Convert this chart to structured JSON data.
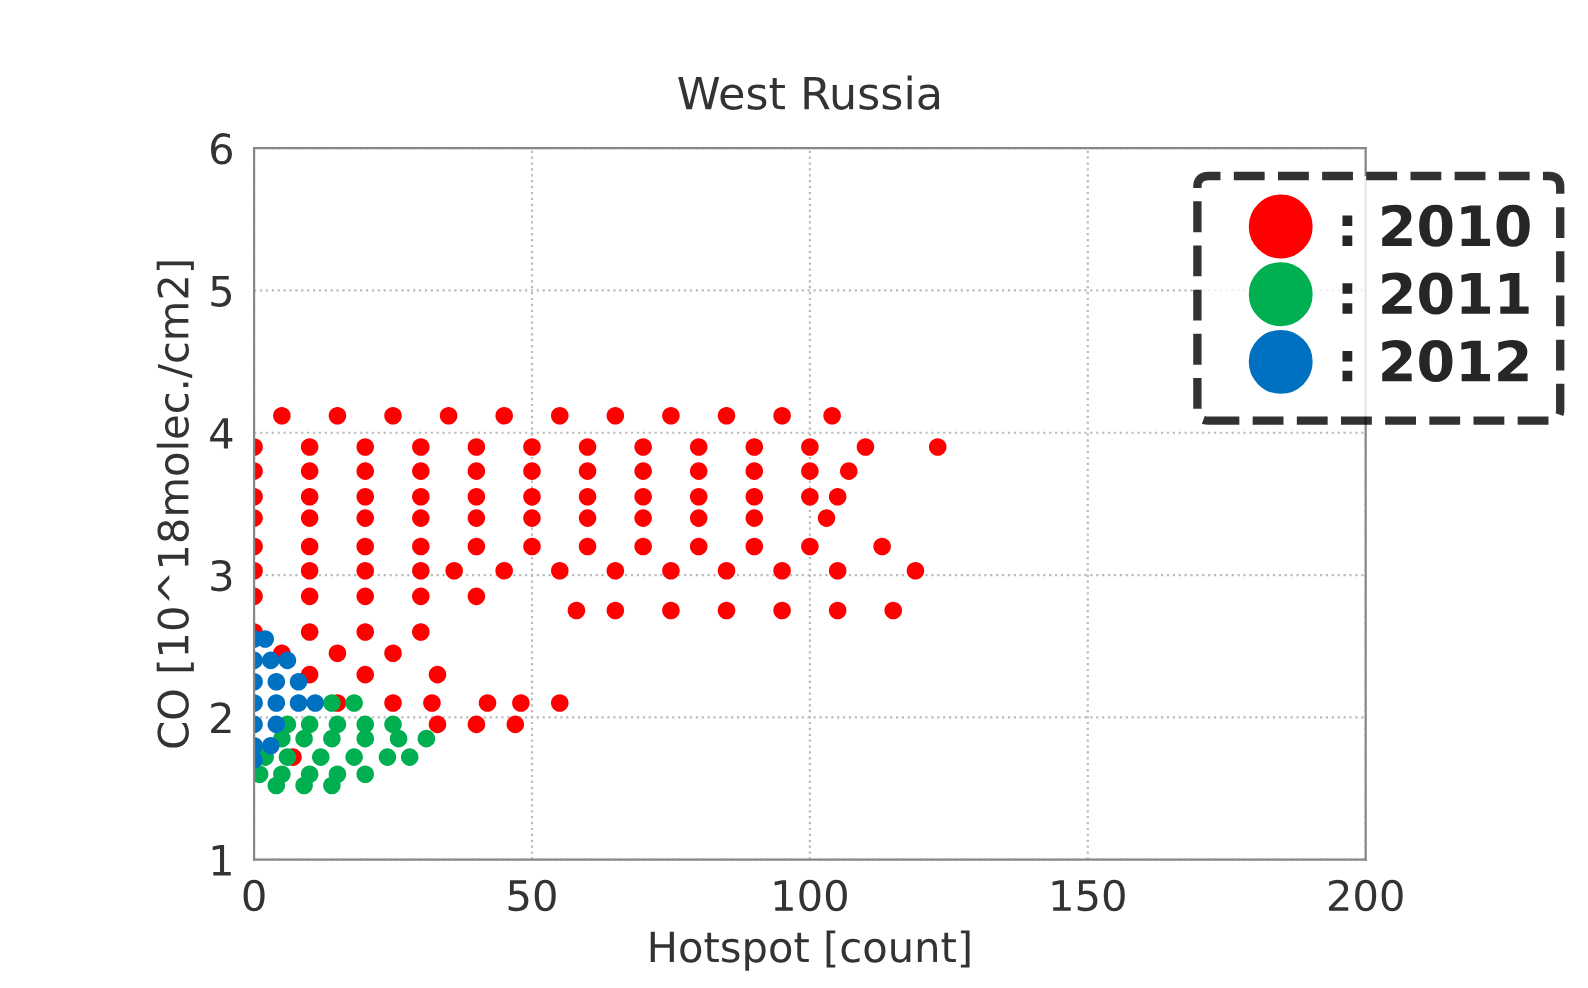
{
  "chart_data": {
    "type": "scatter",
    "title": "West Russia",
    "xlabel": "Hotspot [count]",
    "ylabel": "CO [10^18molec./cm2]",
    "xlim": [
      0,
      200
    ],
    "xticks": [
      0,
      50,
      100,
      150,
      200
    ],
    "ylim": [
      1,
      6
    ],
    "yticks": [
      1,
      2,
      3,
      4,
      5,
      6
    ],
    "grid": true,
    "legend": "top right",
    "marker": "circle",
    "series": [
      {
        "name": ": 2010",
        "color": "#ff0000",
        "x": [
          5,
          15,
          25,
          35,
          45,
          55,
          65,
          75,
          85,
          95,
          104,
          0,
          10,
          20,
          30,
          40,
          50,
          60,
          70,
          80,
          90,
          100,
          110,
          123,
          0,
          10,
          20,
          30,
          40,
          50,
          60,
          70,
          80,
          90,
          100,
          107,
          0,
          10,
          20,
          30,
          40,
          50,
          60,
          70,
          80,
          90,
          100,
          105,
          0,
          10,
          20,
          30,
          40,
          50,
          60,
          70,
          80,
          90,
          103,
          0,
          10,
          20,
          30,
          40,
          50,
          60,
          70,
          80,
          90,
          100,
          113,
          0,
          10,
          20,
          30,
          36,
          45,
          55,
          65,
          75,
          85,
          95,
          105,
          119,
          0,
          10,
          20,
          30,
          40,
          58,
          65,
          75,
          85,
          95,
          105,
          115,
          0,
          10,
          20,
          30,
          5,
          15,
          25,
          10,
          20,
          33,
          15,
          25,
          32,
          42,
          48,
          55,
          33,
          40,
          47,
          7
        ],
        "values": [
          4.12,
          4.12,
          4.12,
          4.12,
          4.12,
          4.12,
          4.12,
          4.12,
          4.12,
          4.12,
          4.12,
          3.9,
          3.9,
          3.9,
          3.9,
          3.9,
          3.9,
          3.9,
          3.9,
          3.9,
          3.9,
          3.9,
          3.9,
          3.9,
          3.73,
          3.73,
          3.73,
          3.73,
          3.73,
          3.73,
          3.73,
          3.73,
          3.73,
          3.73,
          3.73,
          3.73,
          3.55,
          3.55,
          3.55,
          3.55,
          3.55,
          3.55,
          3.55,
          3.55,
          3.55,
          3.55,
          3.55,
          3.55,
          3.4,
          3.4,
          3.4,
          3.4,
          3.4,
          3.4,
          3.4,
          3.4,
          3.4,
          3.4,
          3.4,
          3.2,
          3.2,
          3.2,
          3.2,
          3.2,
          3.2,
          3.2,
          3.2,
          3.2,
          3.2,
          3.2,
          3.2,
          3.03,
          3.03,
          3.03,
          3.03,
          3.03,
          3.03,
          3.03,
          3.03,
          3.03,
          3.03,
          3.03,
          3.03,
          3.03,
          2.85,
          2.85,
          2.85,
          2.85,
          2.85,
          2.75,
          2.75,
          2.75,
          2.75,
          2.75,
          2.75,
          2.75,
          2.6,
          2.6,
          2.6,
          2.6,
          2.45,
          2.45,
          2.45,
          2.3,
          2.3,
          2.3,
          2.1,
          2.1,
          2.1,
          2.1,
          2.1,
          2.1,
          1.95,
          1.95,
          1.95,
          1.72
        ]
      },
      {
        "name": ": 2011",
        "color": "#00b050",
        "x": [
          14,
          18,
          6,
          10,
          15,
          20,
          25,
          5,
          9,
          14,
          20,
          26,
          31,
          2,
          6,
          12,
          18,
          24,
          28,
          1,
          5,
          10,
          15,
          20,
          4,
          9,
          14
        ],
        "values": [
          2.1,
          2.1,
          1.95,
          1.95,
          1.95,
          1.95,
          1.95,
          1.85,
          1.85,
          1.85,
          1.85,
          1.85,
          1.85,
          1.72,
          1.72,
          1.72,
          1.72,
          1.72,
          1.72,
          1.6,
          1.6,
          1.6,
          1.6,
          1.6,
          1.52,
          1.52,
          1.52
        ]
      },
      {
        "name": ": 2012",
        "color": "#0070c0",
        "x": [
          0,
          2,
          0,
          3,
          6,
          0,
          4,
          8,
          0,
          4,
          8,
          11,
          0,
          4,
          0,
          3,
          0
        ],
        "values": [
          2.55,
          2.55,
          2.4,
          2.4,
          2.4,
          2.25,
          2.25,
          2.25,
          2.1,
          2.1,
          2.1,
          2.1,
          1.95,
          1.95,
          1.8,
          1.8,
          1.7
        ]
      }
    ]
  }
}
